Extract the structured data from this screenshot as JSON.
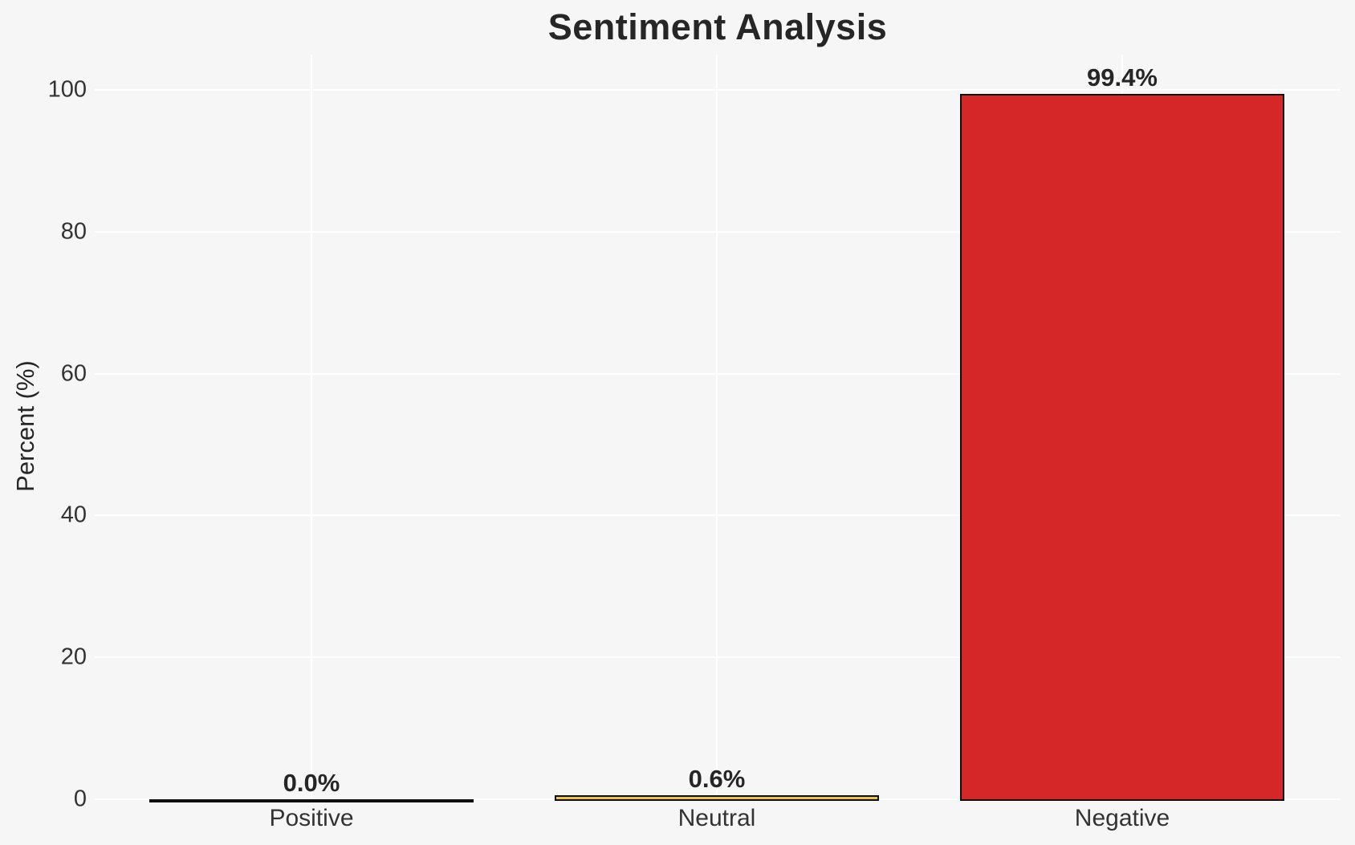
{
  "chart_data": {
    "type": "bar",
    "title": "Sentiment Analysis",
    "xlabel": "",
    "ylabel": "Percent (%)",
    "categories": [
      "Positive",
      "Neutral",
      "Negative"
    ],
    "values": [
      0.0,
      0.6,
      99.4
    ],
    "value_labels": [
      "0.0%",
      "0.6%",
      "99.4%"
    ],
    "bar_colors": [
      null,
      "#f0c43c",
      "#d62728"
    ],
    "bar_edge_color": "#0d0d0d",
    "ylim": [
      0,
      105
    ],
    "yticks": [
      0,
      20,
      40,
      60,
      80,
      100
    ],
    "grid": true,
    "legend": false,
    "colors": {
      "background": "#f6f6f7",
      "gridline": "#ffffff",
      "title_text": "#262626",
      "tick_text": "#333333"
    }
  }
}
